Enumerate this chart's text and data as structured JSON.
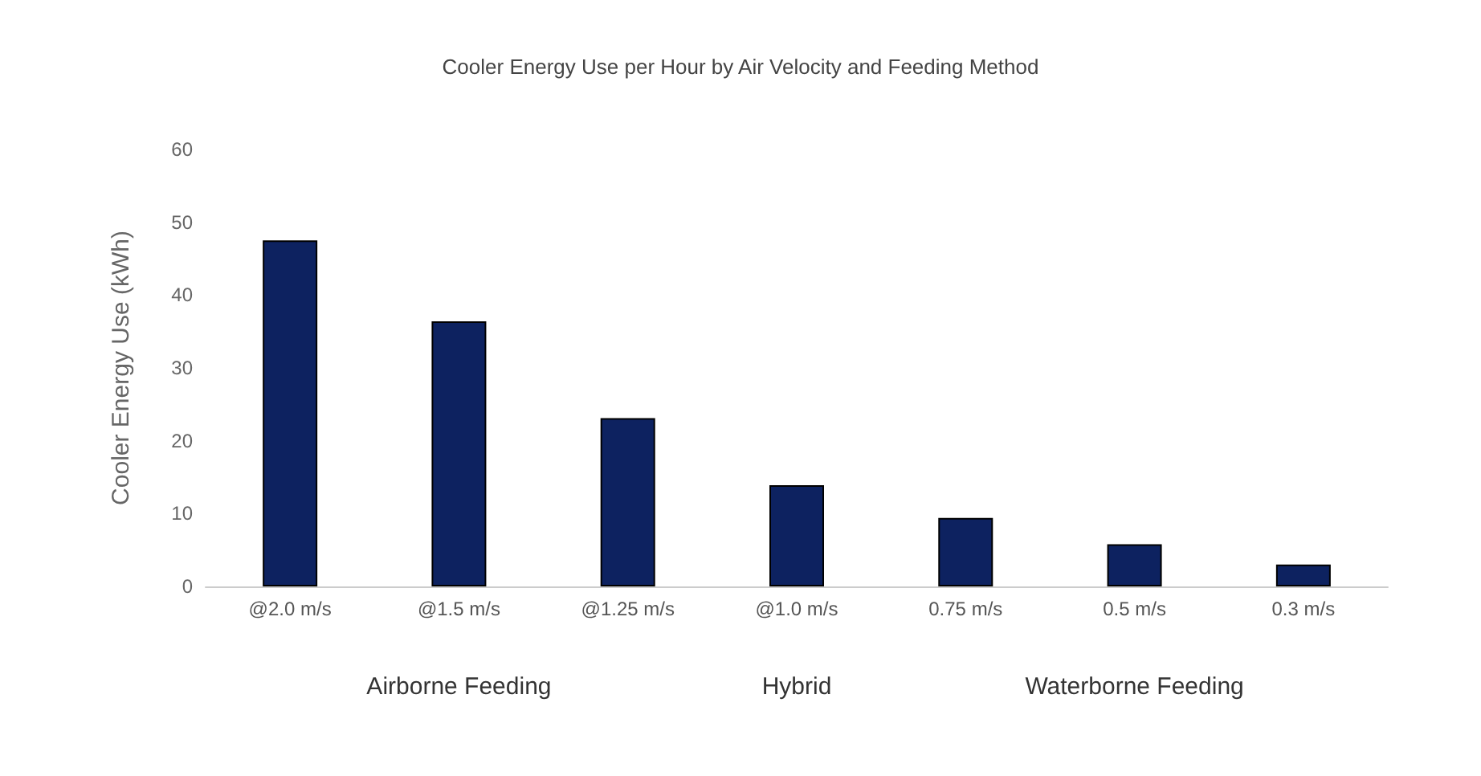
{
  "chart_data": {
    "type": "bar",
    "title": "Cooler Energy Use per Hour by Air Velocity and Feeding Method",
    "ylabel": "Cooler Energy Use (kWh)",
    "categories": [
      "@2.0 m/s",
      "@1.5 m/s",
      "@1.25 m/s",
      "@1.0 m/s",
      "0.75 m/s",
      "0.5 m/s",
      "0.3 m/s"
    ],
    "values": [
      47.5,
      36.4,
      23.1,
      13.9,
      9.4,
      5.8,
      3.0
    ],
    "color": "#0d2260",
    "ylim": [
      0,
      60
    ],
    "yticks": [
      0,
      10,
      20,
      30,
      40,
      50,
      60
    ],
    "annotations": [
      "Airborne Feeding",
      "Hybrid",
      "Waterborne Feeding"
    ],
    "grid": false
  }
}
